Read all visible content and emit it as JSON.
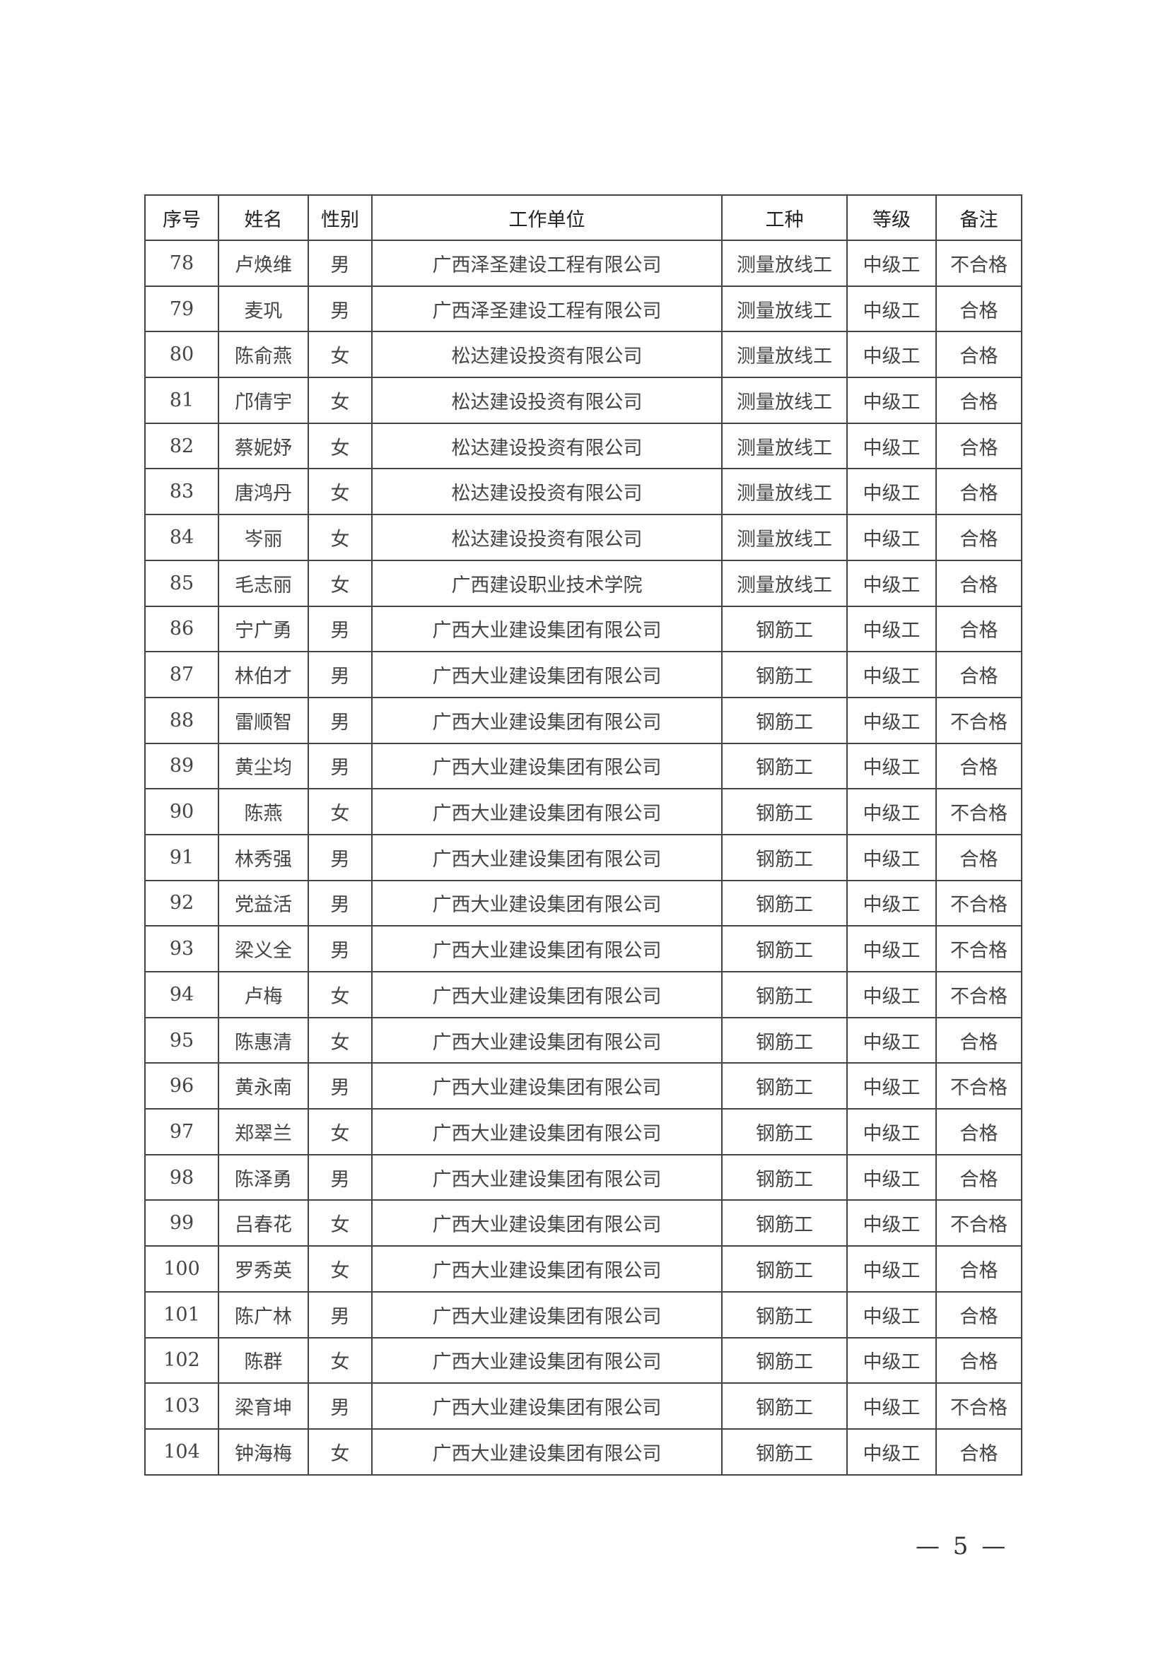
{
  "table": {
    "headers": [
      "序号",
      "姓名",
      "性别",
      "工作单位",
      "工种",
      "等级",
      "备注"
    ],
    "rows": [
      [
        "78",
        "卢焕维",
        "男",
        "广西泽圣建设工程有限公司",
        "测量放线工",
        "中级工",
        "不合格"
      ],
      [
        "79",
        "麦巩",
        "男",
        "广西泽圣建设工程有限公司",
        "测量放线工",
        "中级工",
        "合格"
      ],
      [
        "80",
        "陈俞燕",
        "女",
        "松达建设投资有限公司",
        "测量放线工",
        "中级工",
        "合格"
      ],
      [
        "81",
        "邝倩宇",
        "女",
        "松达建设投资有限公司",
        "测量放线工",
        "中级工",
        "合格"
      ],
      [
        "82",
        "蔡妮妤",
        "女",
        "松达建设投资有限公司",
        "测量放线工",
        "中级工",
        "合格"
      ],
      [
        "83",
        "唐鸿丹",
        "女",
        "松达建设投资有限公司",
        "测量放线工",
        "中级工",
        "合格"
      ],
      [
        "84",
        "岑丽",
        "女",
        "松达建设投资有限公司",
        "测量放线工",
        "中级工",
        "合格"
      ],
      [
        "85",
        "毛志丽",
        "女",
        "广西建设职业技术学院",
        "测量放线工",
        "中级工",
        "合格"
      ],
      [
        "86",
        "宁广勇",
        "男",
        "广西大业建设集团有限公司",
        "钢筋工",
        "中级工",
        "合格"
      ],
      [
        "87",
        "林伯才",
        "男",
        "广西大业建设集团有限公司",
        "钢筋工",
        "中级工",
        "合格"
      ],
      [
        "88",
        "雷顺智",
        "男",
        "广西大业建设集团有限公司",
        "钢筋工",
        "中级工",
        "不合格"
      ],
      [
        "89",
        "黄尘均",
        "男",
        "广西大业建设集团有限公司",
        "钢筋工",
        "中级工",
        "合格"
      ],
      [
        "90",
        "陈燕",
        "女",
        "广西大业建设集团有限公司",
        "钢筋工",
        "中级工",
        "不合格"
      ],
      [
        "91",
        "林秀强",
        "男",
        "广西大业建设集团有限公司",
        "钢筋工",
        "中级工",
        "合格"
      ],
      [
        "92",
        "党益活",
        "男",
        "广西大业建设集团有限公司",
        "钢筋工",
        "中级工",
        "不合格"
      ],
      [
        "93",
        "梁义全",
        "男",
        "广西大业建设集团有限公司",
        "钢筋工",
        "中级工",
        "不合格"
      ],
      [
        "94",
        "卢梅",
        "女",
        "广西大业建设集团有限公司",
        "钢筋工",
        "中级工",
        "不合格"
      ],
      [
        "95",
        "陈惠清",
        "女",
        "广西大业建设集团有限公司",
        "钢筋工",
        "中级工",
        "合格"
      ],
      [
        "96",
        "黄永南",
        "男",
        "广西大业建设集团有限公司",
        "钢筋工",
        "中级工",
        "不合格"
      ],
      [
        "97",
        "郑翠兰",
        "女",
        "广西大业建设集团有限公司",
        "钢筋工",
        "中级工",
        "合格"
      ],
      [
        "98",
        "陈泽勇",
        "男",
        "广西大业建设集团有限公司",
        "钢筋工",
        "中级工",
        "合格"
      ],
      [
        "99",
        "吕春花",
        "女",
        "广西大业建设集团有限公司",
        "钢筋工",
        "中级工",
        "不合格"
      ],
      [
        "100",
        "罗秀英",
        "女",
        "广西大业建设集团有限公司",
        "钢筋工",
        "中级工",
        "合格"
      ],
      [
        "101",
        "陈广林",
        "男",
        "广西大业建设集团有限公司",
        "钢筋工",
        "中级工",
        "合格"
      ],
      [
        "102",
        "陈群",
        "女",
        "广西大业建设集团有限公司",
        "钢筋工",
        "中级工",
        "合格"
      ],
      [
        "103",
        "梁育坤",
        "男",
        "广西大业建设集团有限公司",
        "钢筋工",
        "中级工",
        "不合格"
      ],
      [
        "104",
        "钟海梅",
        "女",
        "广西大业建设集团有限公司",
        "钢筋工",
        "中级工",
        "合格"
      ]
    ]
  },
  "footer": {
    "page_number": "— 5 —"
  }
}
